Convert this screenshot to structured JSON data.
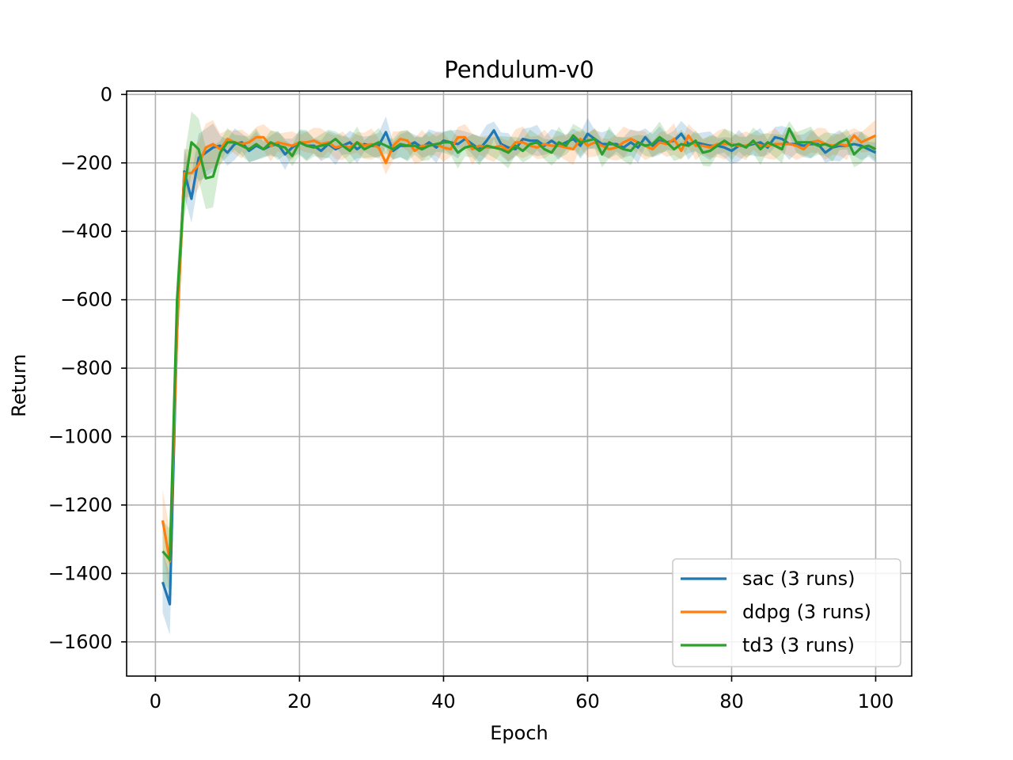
{
  "chart_data": {
    "type": "line",
    "title": "Pendulum-v0",
    "xlabel": "Epoch",
    "ylabel": "Return",
    "xlim": [
      -4,
      105
    ],
    "ylim": [
      -1700,
      10
    ],
    "xticks": [
      0,
      20,
      40,
      60,
      80,
      100
    ],
    "yticks": [
      0,
      -200,
      -400,
      -600,
      -800,
      -1000,
      -1200,
      -1400,
      -1600
    ],
    "grid": true,
    "legend_position": "bottom-right",
    "x_start": 1,
    "series": [
      {
        "name": "sac (3 runs)",
        "color": "#1f77b4",
        "values": [
          -1425,
          -1490,
          -690,
          -225,
          -305,
          -185,
          -170,
          -155,
          -150,
          -170,
          -145,
          -140,
          -165,
          -150,
          -160,
          -150,
          -145,
          -175,
          -155,
          -140,
          -150,
          -150,
          -165,
          -145,
          -160,
          -150,
          -140,
          -160,
          -145,
          -150,
          -150,
          -110,
          -165,
          -150,
          -150,
          -140,
          -155,
          -140,
          -155,
          -135,
          -140,
          -145,
          -130,
          -145,
          -160,
          -135,
          -105,
          -145,
          -155,
          -160,
          -130,
          -135,
          -135,
          -150,
          -135,
          -150,
          -140,
          -130,
          -150,
          -115,
          -130,
          -145,
          -145,
          -145,
          -155,
          -140,
          -155,
          -125,
          -150,
          -135,
          -140,
          -135,
          -115,
          -145,
          -140,
          -145,
          -150,
          -150,
          -155,
          -165,
          -150,
          -150,
          -145,
          -140,
          -155,
          -125,
          -130,
          -145,
          -145,
          -150,
          -145,
          -145,
          -170,
          -155,
          -150,
          -150,
          -145,
          -150,
          -160,
          -170
        ]
      },
      {
        "name": "ddpg (3 runs)",
        "color": "#ff7f0e",
        "values": [
          -1245,
          -1365,
          -700,
          -230,
          -230,
          -205,
          -155,
          -145,
          -160,
          -130,
          -140,
          -145,
          -140,
          -125,
          -125,
          -150,
          -140,
          -145,
          -150,
          -140,
          -140,
          -135,
          -145,
          -140,
          -155,
          -150,
          -155,
          -140,
          -150,
          -145,
          -155,
          -200,
          -150,
          -130,
          -135,
          -165,
          -150,
          -150,
          -145,
          -155,
          -160,
          -125,
          -125,
          -160,
          -150,
          -155,
          -155,
          -150,
          -165,
          -140,
          -140,
          -150,
          -155,
          -145,
          -150,
          -150,
          -155,
          -160,
          -130,
          -150,
          -140,
          -150,
          -160,
          -155,
          -140,
          -130,
          -140,
          -150,
          -160,
          -140,
          -145,
          -130,
          -165,
          -120,
          -150,
          -150,
          -155,
          -145,
          -145,
          -145,
          -150,
          -150,
          -140,
          -150,
          -150,
          -145,
          -145,
          -145,
          -150,
          -160,
          -140,
          -135,
          -145,
          -150,
          -145,
          -150,
          -120,
          -140,
          -130,
          -120
        ]
      },
      {
        "name": "td3 (3 runs)",
        "color": "#2ca02c",
        "values": [
          -1335,
          -1360,
          -600,
          -275,
          -140,
          -160,
          -245,
          -240,
          -170,
          -140,
          -140,
          -150,
          -160,
          -145,
          -160,
          -140,
          -150,
          -155,
          -180,
          -140,
          -150,
          -155,
          -150,
          -145,
          -130,
          -150,
          -165,
          -140,
          -160,
          -150,
          -140,
          -150,
          -160,
          -145,
          -150,
          -150,
          -160,
          -150,
          -145,
          -140,
          -140,
          -170,
          -155,
          -150,
          -165,
          -150,
          -155,
          -160,
          -170,
          -150,
          -165,
          -145,
          -140,
          -160,
          -170,
          -140,
          -150,
          -120,
          -140,
          -135,
          -130,
          -175,
          -140,
          -150,
          -160,
          -165,
          -140,
          -150,
          -145,
          -125,
          -140,
          -160,
          -145,
          -150,
          -135,
          -170,
          -165,
          -150,
          -135,
          -150,
          -145,
          -155,
          -135,
          -160,
          -140,
          -150,
          -160,
          -100,
          -140,
          -140,
          -140,
          -150,
          -145,
          -155,
          -140,
          -130,
          -175,
          -155,
          -150,
          -160
        ]
      }
    ]
  }
}
